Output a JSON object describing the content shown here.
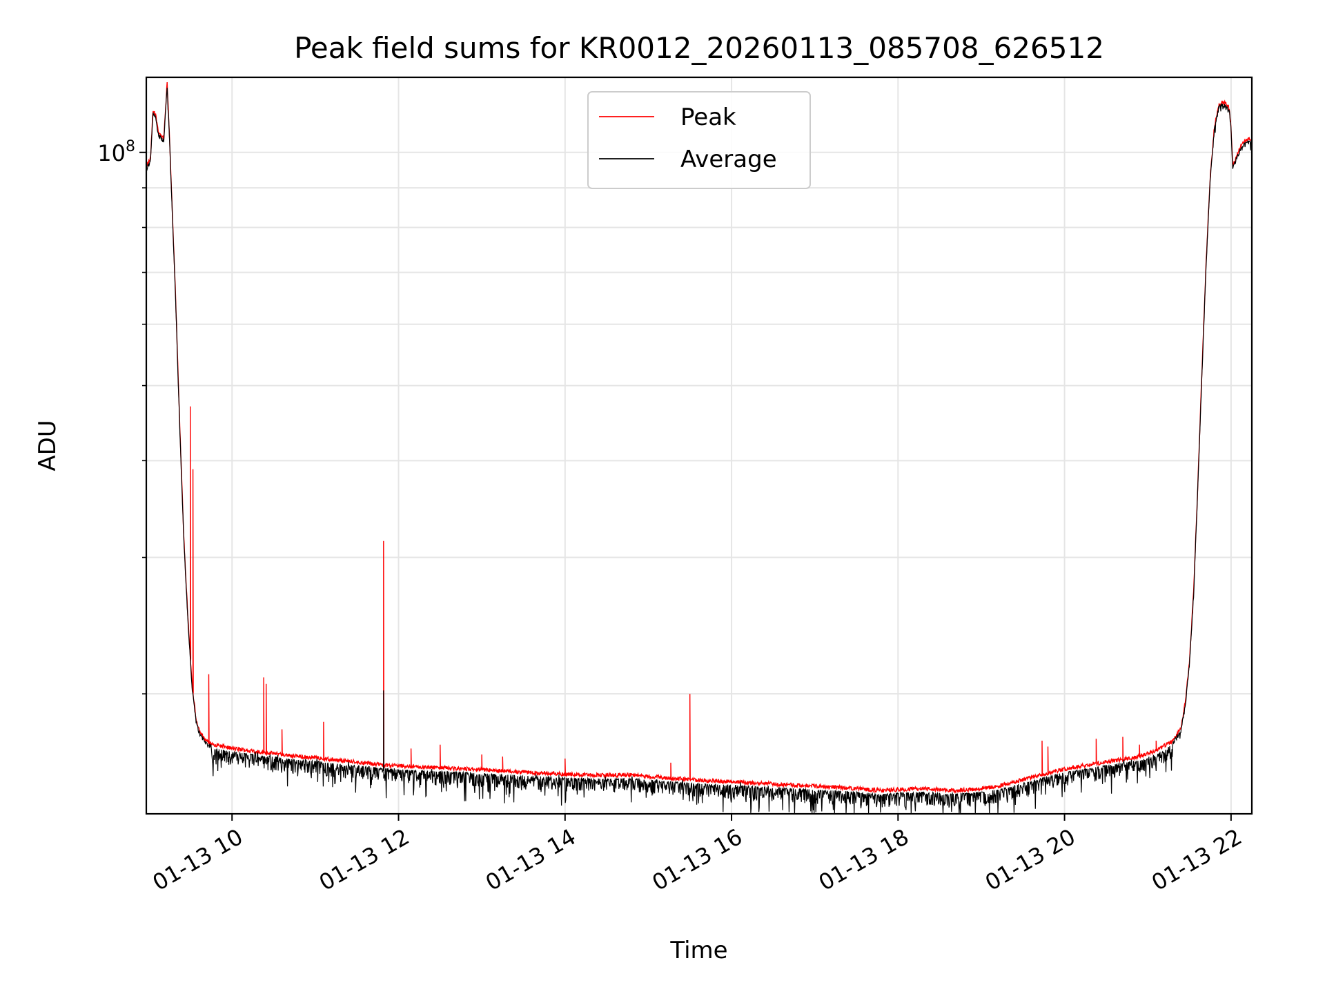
{
  "chart_data": {
    "type": "line",
    "title": "Peak field sums for KR0012_20260113_085708_626512",
    "xlabel": "Time",
    "ylabel": "ADU",
    "x_unit": "hours since 01-13 00:00",
    "xlim": [
      8.97,
      22.25
    ],
    "ylim": [
      14000000,
      125000000
    ],
    "yscale": "log",
    "x_ticks": [
      10,
      12,
      14,
      16,
      18,
      20,
      22
    ],
    "x_tick_labels": [
      "01-13 10",
      "01-13 12",
      "01-13 14",
      "01-13 16",
      "01-13 18",
      "01-13 20",
      "01-13 22"
    ],
    "y_ticks_major": [
      100000000
    ],
    "y_tick_labels": [
      {
        "base": "10",
        "exp": "8"
      }
    ],
    "y_ticks_minor": [
      20000000,
      30000000,
      40000000,
      50000000,
      60000000,
      70000000,
      80000000,
      90000000
    ],
    "grid": true,
    "legend": "top-center",
    "series": [
      {
        "name": "Peak",
        "color": "#ff0000",
        "baseline_x": [
          8.97,
          9.02,
          9.05,
          9.08,
          9.12,
          9.18,
          9.22,
          9.25,
          9.28,
          9.32,
          9.37,
          9.42,
          9.47,
          9.52,
          9.57,
          9.62,
          9.67,
          9.72,
          9.8,
          9.9,
          10.0,
          10.2,
          10.4,
          10.6,
          10.8,
          11.0,
          11.3,
          11.6,
          11.8,
          12.0,
          12.2,
          12.5,
          12.8,
          13.0,
          13.5,
          14.0,
          14.5,
          14.8,
          15.0,
          15.5,
          16.0,
          16.5,
          17.0,
          17.5,
          17.8,
          18.0,
          18.3,
          18.6,
          18.9,
          19.2,
          19.5,
          19.8,
          20.0,
          20.3,
          20.6,
          20.9,
          21.1,
          21.3,
          21.4,
          21.45,
          21.5,
          21.55,
          21.6,
          21.65,
          21.7,
          21.75,
          21.8,
          21.85,
          21.88,
          21.92,
          21.98,
          22.0,
          22.02,
          22.05,
          22.1,
          22.15,
          22.2,
          22.25
        ],
        "baseline_y": [
          96000000,
          98000000,
          113000000,
          112000000,
          106000000,
          104000000,
          123000000,
          104000000,
          85000000,
          66000000,
          45000000,
          32000000,
          25000000,
          20500000,
          18500000,
          17800000,
          17500000,
          17300000,
          17200000,
          17100000,
          17000000,
          16900000,
          16800000,
          16700000,
          16600000,
          16550000,
          16400000,
          16300000,
          16200000,
          16150000,
          16100000,
          16050000,
          16000000,
          15950000,
          15850000,
          15750000,
          15700000,
          15720000,
          15650000,
          15500000,
          15400000,
          15300000,
          15200000,
          15100000,
          15000000,
          15050000,
          15100000,
          15000000,
          15050000,
          15200000,
          15500000,
          15800000,
          16000000,
          16200000,
          16400000,
          16600000,
          16900000,
          17400000,
          18100000,
          19500000,
          22000000,
          27000000,
          37000000,
          52000000,
          72000000,
          93000000,
          108000000,
          115000000,
          116000000,
          116000000,
          114000000,
          108000000,
          96000000,
          98000000,
          101000000,
          103000000,
          104000000,
          104000000
        ],
        "spikes": [
          [
            9.5,
            47000000
          ],
          [
            9.53,
            39000000
          ],
          [
            9.72,
            21200000
          ],
          [
            10.38,
            21000000
          ],
          [
            10.41,
            20600000
          ],
          [
            10.6,
            18000000
          ],
          [
            11.1,
            18400000
          ],
          [
            11.82,
            31500000
          ],
          [
            12.15,
            17000000
          ],
          [
            12.5,
            17200000
          ],
          [
            13.0,
            16700000
          ],
          [
            13.25,
            16600000
          ],
          [
            14.0,
            16500000
          ],
          [
            15.27,
            16300000
          ],
          [
            15.5,
            20000000
          ],
          [
            19.73,
            17400000
          ],
          [
            19.8,
            17100000
          ],
          [
            20.38,
            17500000
          ],
          [
            20.7,
            17600000
          ],
          [
            20.9,
            17200000
          ],
          [
            21.1,
            17400000
          ]
        ]
      },
      {
        "name": "Average",
        "color": "#000000",
        "noise_amplitude_fraction": 0.05,
        "spikes": [
          [
            11.82,
            20200000
          ]
        ]
      }
    ]
  }
}
